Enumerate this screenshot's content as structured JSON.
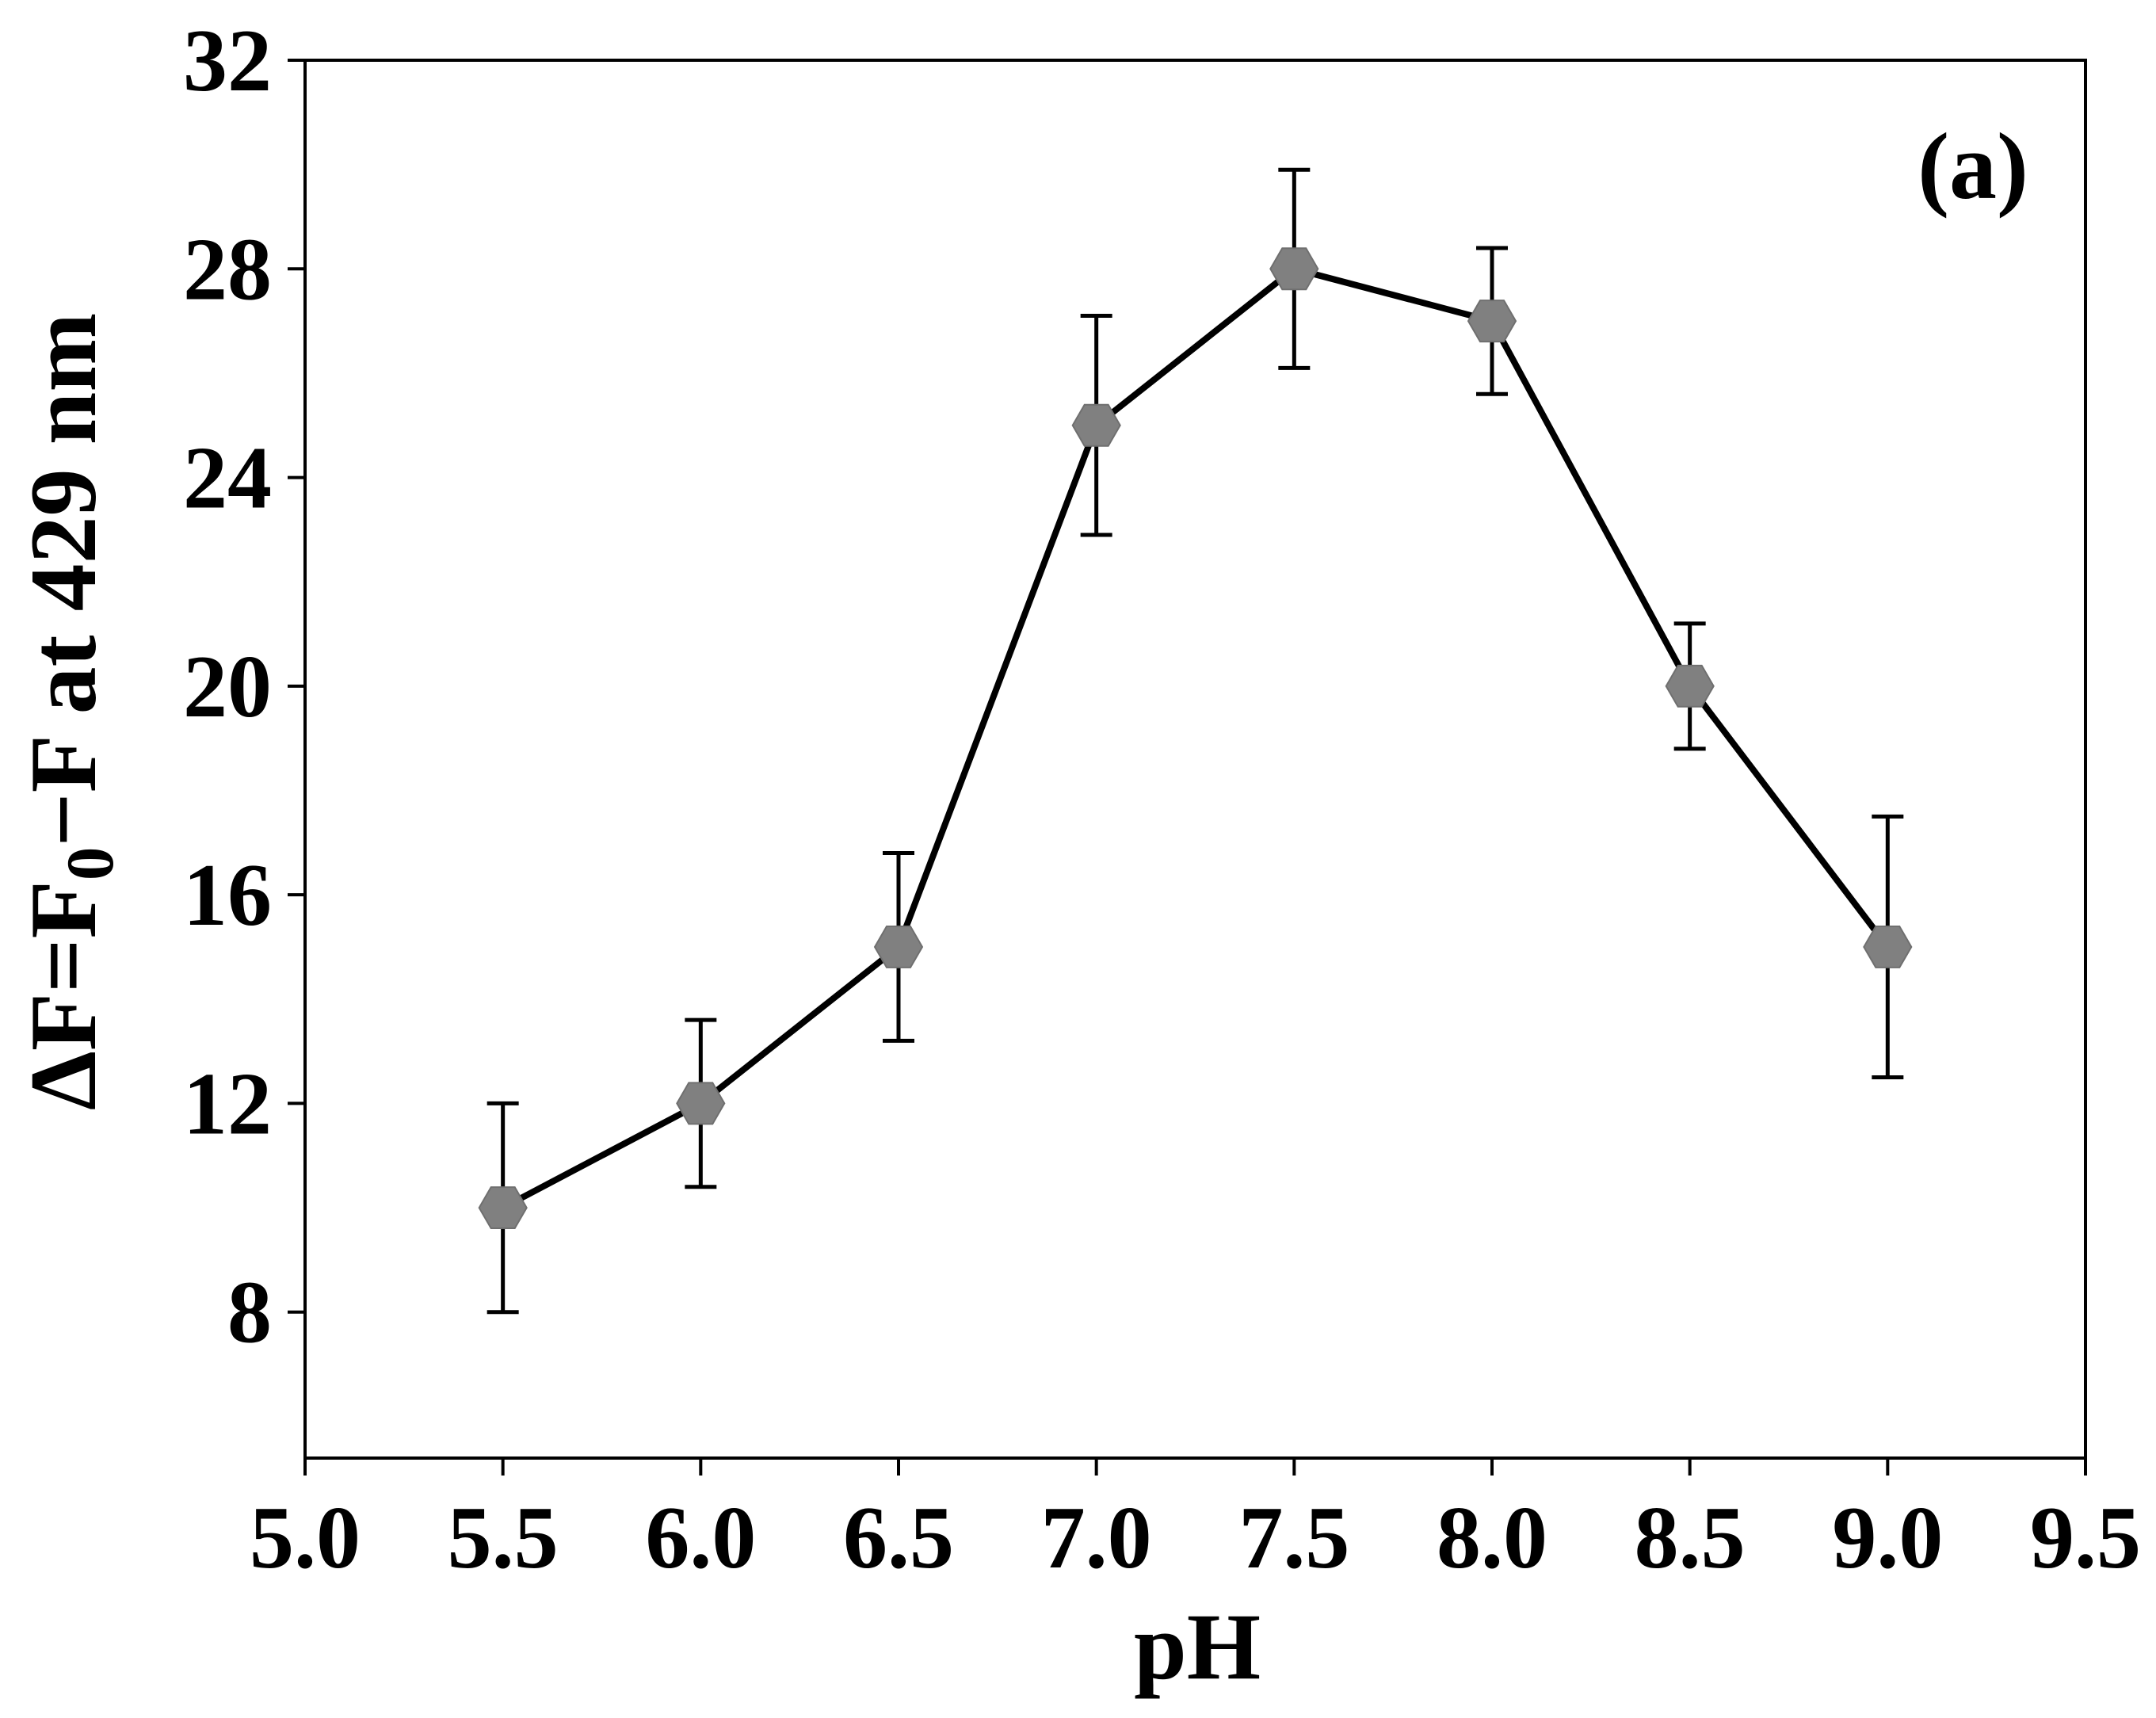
{
  "chart_data": {
    "type": "line",
    "panel_label": "(a)",
    "xlabel": "pH",
    "ylabel": {
      "pre": "ΔF=F",
      "sub": "0",
      "post": "−F at 429 nm"
    },
    "xlim": [
      5.0,
      9.5
    ],
    "ylim": [
      5.2,
      32
    ],
    "xticks": [
      {
        "value": 5.0,
        "label": "5.0"
      },
      {
        "value": 5.5,
        "label": "5.5"
      },
      {
        "value": 6.0,
        "label": "6.0"
      },
      {
        "value": 6.5,
        "label": "6.5"
      },
      {
        "value": 7.0,
        "label": "7.0"
      },
      {
        "value": 7.5,
        "label": "7.5"
      },
      {
        "value": 8.0,
        "label": "8.0"
      },
      {
        "value": 8.5,
        "label": "8.5"
      },
      {
        "value": 9.0,
        "label": "9.0"
      },
      {
        "value": 9.5,
        "label": "9.5"
      }
    ],
    "yticks": [
      {
        "value": 8,
        "label": "8"
      },
      {
        "value": 12,
        "label": "12"
      },
      {
        "value": 16,
        "label": "16"
      },
      {
        "value": 20,
        "label": "20"
      },
      {
        "value": 24,
        "label": "24"
      },
      {
        "value": 28,
        "label": "28"
      },
      {
        "value": 32,
        "label": "32"
      }
    ],
    "grid": false,
    "marker": "hexagon",
    "colors": {
      "line": "#000000",
      "marker": "#808080",
      "error_bar": "#000000",
      "axes": "#000000"
    },
    "series": [
      {
        "x": [
          5.5,
          6.0,
          6.5,
          7.0,
          7.5,
          8.0,
          8.5,
          9.0
        ],
        "y": [
          10.0,
          12.0,
          15.0,
          25.0,
          28.0,
          27.0,
          20.0,
          15.0
        ],
        "err_low": [
          2.0,
          1.6,
          1.8,
          2.1,
          1.9,
          1.4,
          1.2,
          2.5
        ],
        "err_high": [
          2.0,
          1.6,
          1.8,
          2.1,
          1.9,
          1.4,
          1.2,
          2.5
        ]
      }
    ]
  }
}
